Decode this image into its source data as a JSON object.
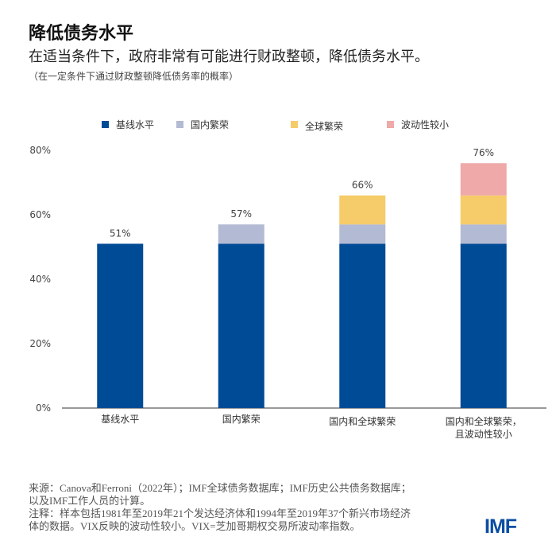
{
  "title": "降低债务水平",
  "subtitle": "在适当条件下，政府非常有可能进行财政整顿，降低债务水平。",
  "note": "（在一定条件下通过财政整顿降低债务率的概率）",
  "footer": {
    "source_line1": "来源：Canova和Ferroni（2022年）；IMF全球债务数据库；IMF历史公共债务数据库；",
    "source_line2": "以及IMF工作人员的计算。",
    "note_line1": "注释：样本包括1981年至2019年21个发达经济体和1994年至2019年37个新兴市场经济",
    "note_line2": "体的数据。VIX反映的波动性较小。VIX=芝加哥期权交易所波动率指数。"
  },
  "logo": "IMF",
  "chart_data": {
    "type": "bar",
    "stacked": true,
    "categories": [
      "基线水平",
      "国内繁荣",
      "国内和全球繁荣",
      "国内和全球繁荣，且波动性较小"
    ],
    "category_lines": [
      [
        "基线水平"
      ],
      [
        "国内繁荣"
      ],
      [
        "国内和全球繁荣"
      ],
      [
        "国内和全球繁荣，",
        "且波动性较小"
      ]
    ],
    "series": [
      {
        "name": "基线水平",
        "color": "#004B96",
        "values": [
          51,
          51,
          51,
          51
        ]
      },
      {
        "name": "国内繁荣",
        "color": "#B3BAD3",
        "values": [
          0,
          6,
          6,
          6
        ]
      },
      {
        "name": "全球繁荣",
        "color": "#F6CB69",
        "values": [
          0,
          0,
          9,
          9
        ]
      },
      {
        "name": "波动性较小",
        "color": "#EFA9A9",
        "values": [
          0,
          0,
          0,
          10
        ]
      }
    ],
    "totals_labels": [
      "51%",
      "57%",
      "66%",
      "76%"
    ],
    "ylim": [
      0,
      80
    ],
    "yticks": [
      "0%",
      "20%",
      "40%",
      "60%",
      "80%"
    ],
    "legend_position": "top",
    "grid": false
  }
}
